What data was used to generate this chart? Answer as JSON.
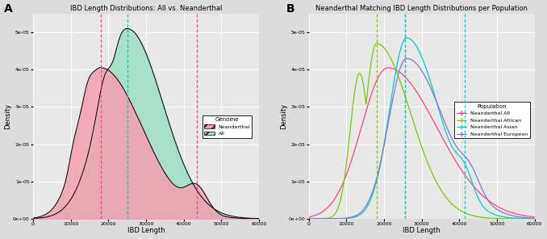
{
  "title_A": "IBD Length Distributions: All vs. Neanderthal",
  "title_B": "Neanderthal Matching IBD Length Distributions per Population",
  "xlabel": "IBD Length",
  "ylabel": "Density",
  "xlim": [
    0,
    60000
  ],
  "ylim": [
    0,
    5.5e-05
  ],
  "yticks": [
    0,
    1e-05,
    2e-05,
    3e-05,
    4e-05,
    5e-05
  ],
  "xticks": [
    0,
    10000,
    20000,
    30000,
    40000,
    50000,
    60000
  ],
  "bg_color": "#e8e8e8",
  "grid_color": "white",
  "color_neanderthal_fill": "#f4a0b0",
  "color_all_fill": "#a0dfc8",
  "color_pink_line": "#ff4488",
  "color_teal_line": "#00ccaa",
  "color_african": "#77cc00",
  "color_asian": "#00cccc",
  "color_european": "#8877cc",
  "color_all_b": "#ff4488",
  "vline_A_pink1": 18000,
  "vline_A_teal": 25000,
  "vline_A_pink2": 43500,
  "vline_B_green": 18000,
  "vline_B_purple": 25500,
  "vline_B_cyan2": 41500
}
